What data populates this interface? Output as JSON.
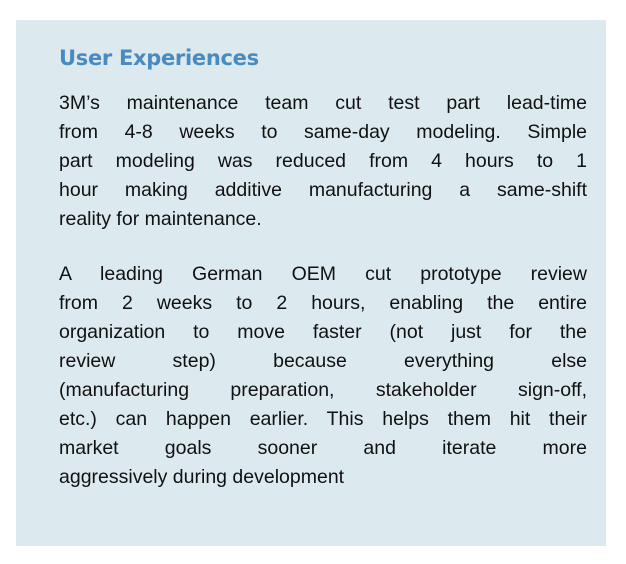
{
  "title": "User Experiences",
  "paragraphs": [
    {
      "lines": [
        "3M’s maintenance team cut test part lead-time",
        "from 4-8 weeks to same-day modeling. Simple",
        "part modeling was reduced from 4 hours to 1",
        "hour making additive manufacturing a same-shift",
        "reality for maintenance."
      ]
    },
    {
      "lines": [
        "A leading German OEM cut prototype review",
        "from 2 weeks to 2 hours, enabling the entire",
        "organization to move faster (not just for the",
        "review step) because everything else",
        "(manufacturing preparation, stakeholder sign-off,",
        "etc.) can happen earlier. This helps them hit their",
        "market goals sooner and iterate more",
        "aggressively during development"
      ]
    }
  ]
}
